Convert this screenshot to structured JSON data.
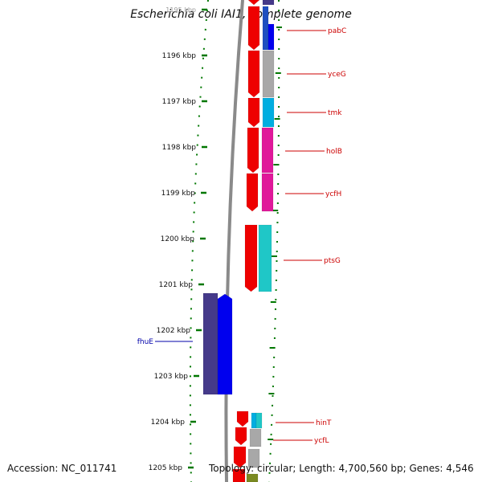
{
  "title": "Escherichia coli IAI1, complete genome",
  "footer": {
    "accession": "Accession: NC_011741",
    "topology": "Topology: circular; Length: 4,700,560 bp; Genes: 4,546"
  },
  "map": {
    "ruler": [
      {
        "label": "1195 kbp",
        "faded": true
      },
      {
        "label": "1196 kbp"
      },
      {
        "label": "1197 kbp"
      },
      {
        "label": "1198 kbp"
      },
      {
        "label": "1199 kbp"
      },
      {
        "label": "1200 kbp"
      },
      {
        "label": "1201 kbp"
      },
      {
        "label": "1202 kbp"
      },
      {
        "label": "1203 kbp"
      },
      {
        "label": "1204 kbp"
      },
      {
        "label": "1205 kbp"
      }
    ],
    "gene_labels": [
      {
        "name": "pabC",
        "color": "#cc0000"
      },
      {
        "name": "yceG",
        "color": "#cc0000"
      },
      {
        "name": "tmk",
        "color": "#cc0000"
      },
      {
        "name": "holB",
        "color": "#cc0000"
      },
      {
        "name": "ycfH",
        "color": "#cc0000"
      },
      {
        "name": "ptsG",
        "color": "#cc0000"
      },
      {
        "name": "hinT",
        "color": "#cc0000"
      },
      {
        "name": "ycfL",
        "color": "#cc0000"
      },
      {
        "name": "fhuE",
        "color": "#0000aa"
      }
    ],
    "colors": {
      "forward_strand": "#ee0000",
      "reverse_strand": "#0000ee",
      "reverse_cog": "#453a8a",
      "backbone": "#8a8a8a",
      "tick": "#007700",
      "blue": "#1e4fc0",
      "gray": "#a8a8a8",
      "cyan": "#00aee0",
      "magenta": "#e0199a",
      "teal": "#1fc7c7",
      "olive": "#7a8a22"
    }
  }
}
